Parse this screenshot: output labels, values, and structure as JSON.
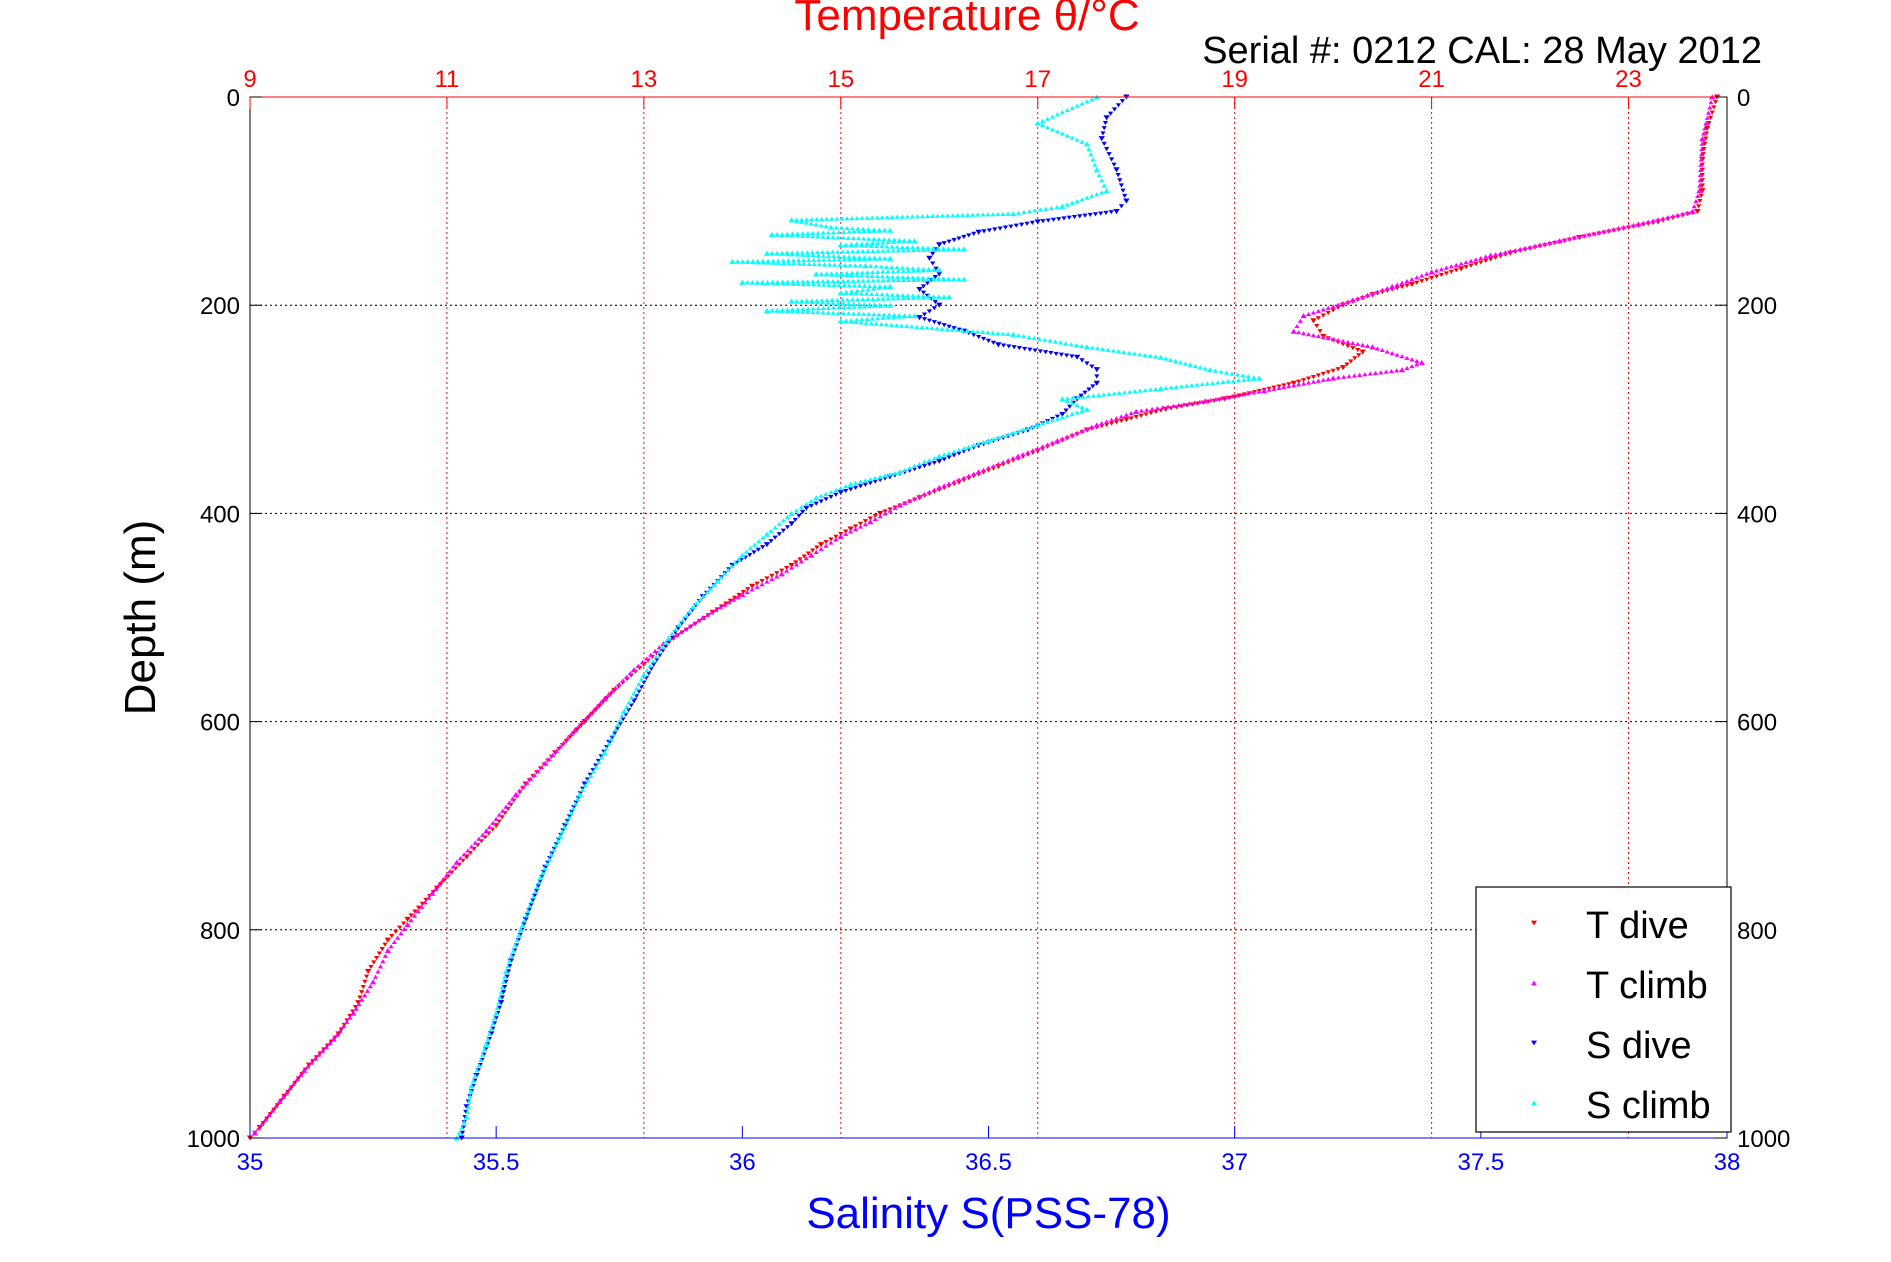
{
  "figure": {
    "top_title": "Temperature θ/°C",
    "serial_text": "Serial #: 0212  CAL: 28 May 2012"
  },
  "chart_data": {
    "type": "scatter",
    "y_axis": {
      "label": "Depth (m)",
      "range": [
        0,
        1000
      ],
      "reversed": true,
      "ticks": [
        0,
        200,
        400,
        600,
        800,
        1000
      ]
    },
    "x_bottom": {
      "label": "Salinity S(PSS-78)",
      "range": [
        35,
        38
      ],
      "ticks": [
        35,
        35.5,
        36,
        36.5,
        37,
        37.5,
        38
      ],
      "tick_labels": [
        "35",
        "35.5",
        "36",
        "36.5",
        "37",
        "37.5",
        "38"
      ],
      "color": "#0000ff"
    },
    "x_top": {
      "label": "Temperature θ/°C",
      "range": [
        9,
        24
      ],
      "ticks": [
        9,
        11,
        13,
        15,
        17,
        19,
        21,
        23
      ],
      "tick_labels": [
        "9",
        "11",
        "13",
        "15",
        "17",
        "19",
        "21",
        "23"
      ],
      "color": "#ff0000"
    },
    "grid": {
      "vertical": "top-axis ticks, red dotted",
      "horizontal": "depth ticks, black dotted"
    },
    "legend": {
      "position": "bottom-right",
      "entries": [
        "T dive",
        "T climb",
        "S dive",
        "S climb"
      ]
    },
    "series": [
      {
        "name": "T dive",
        "axis": "temperature",
        "color": "#ff0000",
        "marker": "triangle-down",
        "points": [
          [
            23.9,
            0
          ],
          [
            23.8,
            30
          ],
          [
            23.75,
            60
          ],
          [
            23.75,
            90
          ],
          [
            23.7,
            110
          ],
          [
            23.3,
            120
          ],
          [
            22.5,
            135
          ],
          [
            21.8,
            150
          ],
          [
            21.3,
            165
          ],
          [
            20.8,
            180
          ],
          [
            20.4,
            190
          ],
          [
            20.1,
            200
          ],
          [
            19.8,
            215
          ],
          [
            19.9,
            230
          ],
          [
            20.3,
            245
          ],
          [
            20.1,
            260
          ],
          [
            19.6,
            275
          ],
          [
            18.9,
            290
          ],
          [
            18.3,
            300
          ],
          [
            17.9,
            310
          ],
          [
            17.5,
            320
          ],
          [
            17.0,
            340
          ],
          [
            16.6,
            355
          ],
          [
            16.2,
            370
          ],
          [
            15.8,
            385
          ],
          [
            15.4,
            400
          ],
          [
            15.1,
            415
          ],
          [
            14.8,
            430
          ],
          [
            14.5,
            450
          ],
          [
            14.1,
            470
          ],
          [
            13.7,
            495
          ],
          [
            13.3,
            520
          ],
          [
            13.0,
            545
          ],
          [
            12.7,
            570
          ],
          [
            12.4,
            600
          ],
          [
            12.1,
            630
          ],
          [
            11.8,
            660
          ],
          [
            11.5,
            700
          ],
          [
            11.2,
            730
          ],
          [
            10.9,
            760
          ],
          [
            10.6,
            790
          ],
          [
            10.4,
            810
          ],
          [
            10.2,
            840
          ],
          [
            10.1,
            870
          ],
          [
            9.9,
            900
          ],
          [
            9.6,
            930
          ],
          [
            9.35,
            960
          ],
          [
            9.1,
            990
          ],
          [
            9.0,
            1000
          ]
        ]
      },
      {
        "name": "T climb",
        "axis": "temperature",
        "color": "#ff00ff",
        "marker": "triangle-up",
        "points": [
          [
            23.85,
            0
          ],
          [
            23.75,
            40
          ],
          [
            23.72,
            90
          ],
          [
            23.65,
            110
          ],
          [
            23.1,
            122
          ],
          [
            22.3,
            138
          ],
          [
            21.6,
            152
          ],
          [
            21.0,
            168
          ],
          [
            20.6,
            182
          ],
          [
            20.2,
            195
          ],
          [
            19.7,
            210
          ],
          [
            19.6,
            225
          ],
          [
            20.4,
            240
          ],
          [
            20.9,
            255
          ],
          [
            20.7,
            262
          ],
          [
            20.0,
            270
          ],
          [
            19.3,
            282
          ],
          [
            18.7,
            292
          ],
          [
            18.0,
            302
          ],
          [
            17.6,
            315
          ],
          [
            17.2,
            330
          ],
          [
            16.8,
            345
          ],
          [
            16.4,
            360
          ],
          [
            16.0,
            375
          ],
          [
            15.6,
            392
          ],
          [
            15.3,
            408
          ],
          [
            15.0,
            422
          ],
          [
            14.7,
            440
          ],
          [
            14.4,
            458
          ],
          [
            14.0,
            478
          ],
          [
            13.6,
            500
          ],
          [
            13.2,
            525
          ],
          [
            12.9,
            550
          ],
          [
            12.6,
            578
          ],
          [
            12.3,
            608
          ],
          [
            12.0,
            640
          ],
          [
            11.7,
            670
          ],
          [
            11.4,
            705
          ],
          [
            11.1,
            735
          ],
          [
            10.85,
            765
          ],
          [
            10.6,
            795
          ],
          [
            10.4,
            820
          ],
          [
            10.25,
            850
          ],
          [
            10.05,
            880
          ],
          [
            9.85,
            905
          ],
          [
            9.55,
            935
          ],
          [
            9.3,
            965
          ],
          [
            9.05,
            995
          ]
        ]
      },
      {
        "name": "S dive",
        "axis": "salinity",
        "color": "#0000ff",
        "marker": "triangle-down",
        "points": [
          [
            36.78,
            0
          ],
          [
            36.74,
            20
          ],
          [
            36.73,
            40
          ],
          [
            36.76,
            70
          ],
          [
            36.78,
            100
          ],
          [
            36.76,
            110
          ],
          [
            36.6,
            120
          ],
          [
            36.48,
            130
          ],
          [
            36.4,
            142
          ],
          [
            36.38,
            155
          ],
          [
            36.4,
            170
          ],
          [
            36.36,
            185
          ],
          [
            36.4,
            200
          ],
          [
            36.36,
            212
          ],
          [
            36.45,
            225
          ],
          [
            36.52,
            238
          ],
          [
            36.68,
            250
          ],
          [
            36.72,
            262
          ],
          [
            36.72,
            275
          ],
          [
            36.68,
            290
          ],
          [
            36.65,
            305
          ],
          [
            36.58,
            320
          ],
          [
            36.48,
            335
          ],
          [
            36.4,
            350
          ],
          [
            36.3,
            365
          ],
          [
            36.2,
            380
          ],
          [
            36.13,
            395
          ],
          [
            36.1,
            410
          ],
          [
            36.05,
            430
          ],
          [
            35.98,
            450
          ],
          [
            35.92,
            480
          ],
          [
            35.87,
            510
          ],
          [
            35.82,
            545
          ],
          [
            35.78,
            580
          ],
          [
            35.73,
            620
          ],
          [
            35.68,
            660
          ],
          [
            35.64,
            700
          ],
          [
            35.6,
            740
          ],
          [
            35.56,
            790
          ],
          [
            35.53,
            830
          ],
          [
            35.51,
            870
          ],
          [
            35.49,
            900
          ],
          [
            35.46,
            940
          ],
          [
            35.44,
            970
          ],
          [
            35.43,
            1000
          ]
        ]
      },
      {
        "name": "S climb",
        "axis": "salinity",
        "color": "#00ffff",
        "marker": "triangle-up",
        "points": [
          [
            36.72,
            0
          ],
          [
            36.6,
            25
          ],
          [
            36.7,
            45
          ],
          [
            36.72,
            70
          ],
          [
            36.74,
            90
          ],
          [
            36.65,
            105
          ],
          [
            36.55,
            112
          ],
          [
            36.1,
            118
          ],
          [
            36.18,
            125
          ],
          [
            36.3,
            128
          ],
          [
            36.06,
            132
          ],
          [
            36.35,
            138
          ],
          [
            36.2,
            142
          ],
          [
            36.45,
            146
          ],
          [
            36.05,
            150
          ],
          [
            36.3,
            155
          ],
          [
            35.98,
            158
          ],
          [
            36.25,
            162
          ],
          [
            36.4,
            166
          ],
          [
            36.15,
            170
          ],
          [
            36.45,
            175
          ],
          [
            36.0,
            178
          ],
          [
            36.3,
            182
          ],
          [
            36.2,
            188
          ],
          [
            36.42,
            192
          ],
          [
            36.1,
            196
          ],
          [
            36.3,
            200
          ],
          [
            36.05,
            205
          ],
          [
            36.35,
            210
          ],
          [
            36.2,
            215
          ],
          [
            36.55,
            228
          ],
          [
            36.7,
            240
          ],
          [
            36.85,
            250
          ],
          [
            36.95,
            262
          ],
          [
            37.05,
            270
          ],
          [
            36.85,
            280
          ],
          [
            36.65,
            290
          ],
          [
            36.7,
            300
          ],
          [
            36.6,
            315
          ],
          [
            36.5,
            330
          ],
          [
            36.4,
            345
          ],
          [
            36.32,
            360
          ],
          [
            36.22,
            372
          ],
          [
            36.15,
            385
          ],
          [
            36.1,
            400
          ],
          [
            36.05,
            420
          ],
          [
            36.0,
            440
          ],
          [
            35.95,
            465
          ],
          [
            35.9,
            490
          ],
          [
            35.85,
            520
          ],
          [
            35.8,
            555
          ],
          [
            35.76,
            590
          ],
          [
            35.72,
            630
          ],
          [
            35.67,
            670
          ],
          [
            35.63,
            710
          ],
          [
            35.59,
            750
          ],
          [
            35.55,
            800
          ],
          [
            35.52,
            840
          ],
          [
            35.5,
            880
          ],
          [
            35.48,
            910
          ],
          [
            35.45,
            950
          ],
          [
            35.44,
            980
          ],
          [
            35.42,
            1000
          ]
        ]
      }
    ]
  }
}
